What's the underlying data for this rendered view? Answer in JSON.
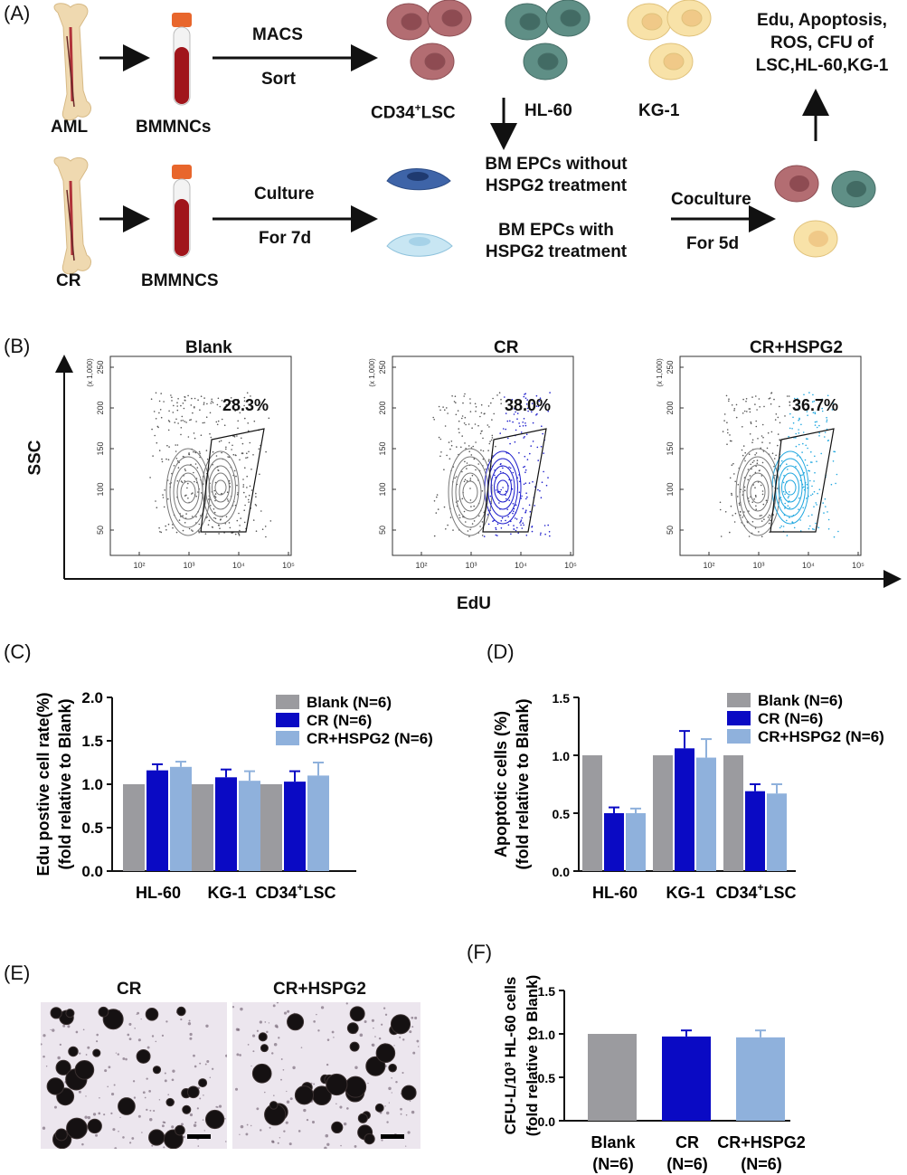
{
  "panel_labels": {
    "A": "(A)",
    "B": "(B)",
    "C": "(C)",
    "D": "(D)",
    "E": "(E)",
    "F": "(F)"
  },
  "panel_a": {
    "source_top": "AML",
    "source_bottom": "CR",
    "cells_top": "BMMNCs",
    "cells_bottom": "BMMNCS",
    "arrow_top_above": "MACS",
    "arrow_top_below": "Sort",
    "arrow_bottom_above": "Culture",
    "arrow_bottom_below": "For 7d",
    "lsc_main": "CD34",
    "lsc_sup": "+",
    "lsc_tail": "LSC",
    "hl60": "HL-60",
    "kg1": "KG-1",
    "epc_without": "BM EPCs without\nHSPG2 treatment",
    "epc_with": "BM EPCs with\nHSPG2 treatment",
    "coculture_above": "Coculture",
    "coculture_below": "For 5d",
    "readout": "Edu, Apoptosis,\nROS, CFU of\nLSC,HL-60,KG-1",
    "colors": {
      "lsc": "#b36d72",
      "hl60": "#5f8f86",
      "kg1": "#f2d393",
      "epc_dark": "#3e64a8",
      "epc_light": "#b9dced"
    }
  },
  "panel_b": {
    "panels": [
      {
        "title": "Blank",
        "percent": "28.3%",
        "color": "#222222"
      },
      {
        "title": "CR",
        "percent": "38.0%",
        "color": "#1c1ccc"
      },
      {
        "title": "CR+HSPG2",
        "percent": "36.7%",
        "color": "#22a8e0"
      }
    ],
    "y_axis": "SSC",
    "x_axis": "EdU",
    "y_scale": "(x 1,000)",
    "y_ticks": [
      "250",
      "200",
      "150",
      "100",
      "50"
    ],
    "x_ticks": [
      "10²",
      "10³",
      "10⁴",
      "10⁵"
    ]
  },
  "colors": {
    "blank": "#9b9b9f",
    "cr": "#0a0ac4",
    "hspg2": "#8fb1dc"
  },
  "chart_data": [
    {
      "type": "bar",
      "panel": "C",
      "categories": [
        "HL-60",
        "KG-1",
        "CD34+LSC"
      ],
      "series": [
        {
          "name": "Blank (N=6)",
          "values": [
            1.0,
            1.0,
            1.0
          ],
          "errors": [
            0,
            0,
            0
          ]
        },
        {
          "name": "CR (N=6)",
          "values": [
            1.16,
            1.08,
            1.03
          ],
          "errors": [
            0.07,
            0.09,
            0.12
          ]
        },
        {
          "name": "CR+HSPG2 (N=6)",
          "values": [
            1.2,
            1.04,
            1.1
          ],
          "errors": [
            0.06,
            0.11,
            0.15
          ]
        }
      ],
      "ylabel": "Edu postive cell rate(%)\n(fold relative to Blank)",
      "ylim": [
        0,
        2.0
      ],
      "yticks": [
        "0.0",
        "0.5",
        "1.0",
        "1.5",
        "2.0"
      ],
      "legend": "top-right"
    },
    {
      "type": "bar",
      "panel": "D",
      "categories": [
        "HL-60",
        "KG-1",
        "CD34+LSC"
      ],
      "series": [
        {
          "name": "Blank (N=6)",
          "values": [
            1.0,
            1.0,
            1.0
          ],
          "errors": [
            0,
            0,
            0
          ]
        },
        {
          "name": "CR (N=6)",
          "values": [
            0.5,
            1.06,
            0.69
          ],
          "errors": [
            0.05,
            0.15,
            0.06
          ]
        },
        {
          "name": "CR+HSPG2 (N=6)",
          "values": [
            0.5,
            0.98,
            0.67
          ],
          "errors": [
            0.04,
            0.16,
            0.08
          ]
        }
      ],
      "ylabel": "Apoptotic cells (%)\n(fold relative to Blank)",
      "ylim": [
        0,
        1.5
      ],
      "yticks": [
        "0.0",
        "0.5",
        "1.0",
        "1.5"
      ],
      "legend": "top-right"
    },
    {
      "type": "bar",
      "panel": "F",
      "categories": [
        "Blank\n(N=6)",
        "CR\n(N=6)",
        "CR+HSPG2\n(N=6)"
      ],
      "series": [
        {
          "name": "",
          "values": [
            1.0,
            0.97,
            0.96
          ],
          "errors": [
            0,
            0.07,
            0.08
          ]
        }
      ],
      "ylabel": "CFU-L/10³ HL-60 cells\n(fold relative to Blank)",
      "ylim": [
        0,
        1.5
      ],
      "yticks": [
        "0.0",
        "0.5",
        "1.0",
        "1.5"
      ]
    }
  ],
  "panel_e": {
    "left": "CR",
    "right": "CR+HSPG2"
  }
}
